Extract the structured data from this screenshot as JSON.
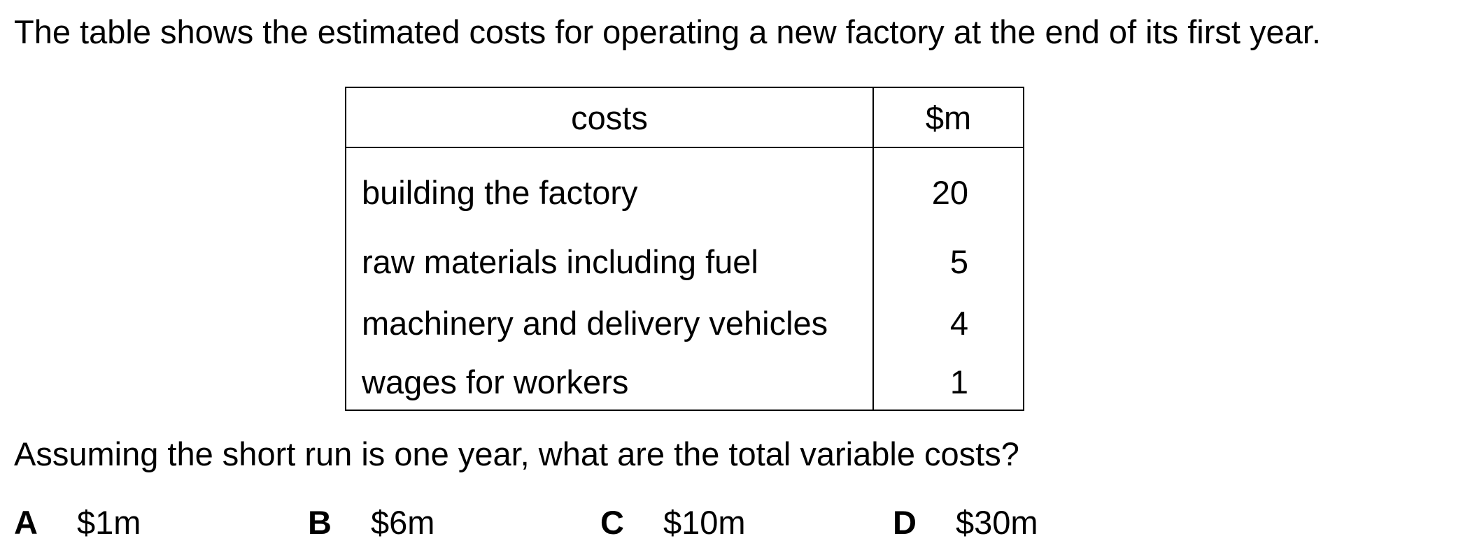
{
  "intro": "The table shows the estimated costs for operating a new factory at the end of its first year.",
  "table": {
    "headers": [
      "costs",
      "$m"
    ],
    "rows": [
      {
        "item": "building the factory",
        "value": "20"
      },
      {
        "item": "raw materials including fuel",
        "value": "5"
      },
      {
        "item": "machinery and delivery vehicles",
        "value": "4"
      },
      {
        "item": "wages for workers",
        "value": "1"
      }
    ]
  },
  "question": "Assuming the short run is one year, what are the total variable costs?",
  "options": [
    {
      "letter": "A",
      "text": "$1m"
    },
    {
      "letter": "B",
      "text": "$6m"
    },
    {
      "letter": "C",
      "text": "$10m"
    },
    {
      "letter": "D",
      "text": "$30m"
    }
  ]
}
